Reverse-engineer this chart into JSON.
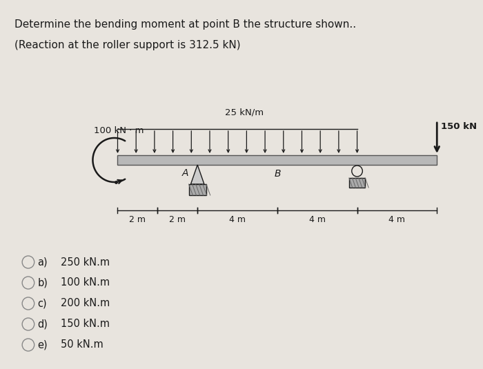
{
  "title_line1": "Determine the bending moment at point B the structure shown..",
  "title_line2": "(Reaction at the roller support is 312.5 kN)",
  "bg_color": "#e8e4de",
  "text_color": "#1a1a1a",
  "moment_label": "100 kN · m",
  "distributed_load_label": "25 kN/m",
  "point_load_label": "150 kN",
  "beam_color": "#b8b8b8",
  "beam_edge_color": "#555555",
  "support_color": "#aaaaaa",
  "dim_labels": [
    "2 m",
    "2 m",
    "4 m",
    "4 m",
    "4 m"
  ],
  "choices": [
    [
      "a)",
      "250 kN.m"
    ],
    [
      "b)",
      "100 kN.m"
    ],
    [
      "c)",
      "200 kN.m"
    ],
    [
      "d)",
      "150 kN.m"
    ],
    [
      "e)",
      "50 kN.m"
    ]
  ],
  "fig_width": 7.0,
  "fig_height": 5.35
}
